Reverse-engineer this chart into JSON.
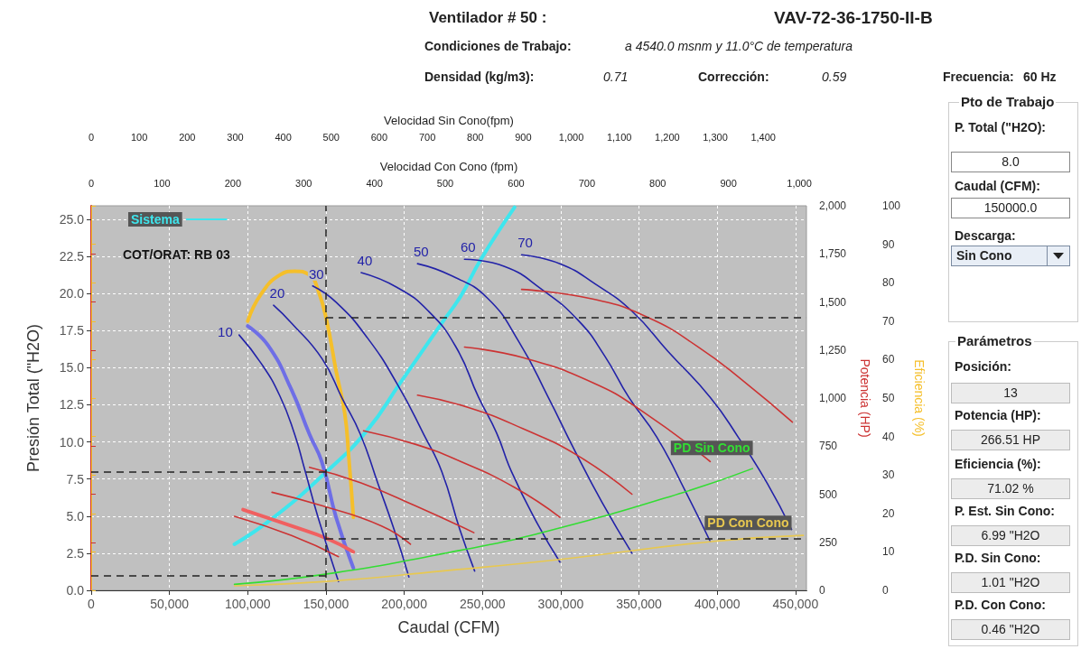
{
  "chart_data": {
    "type": "line",
    "title": "Ventilador # 50 :",
    "subtitle": "VAV-72-36-1750-II-B",
    "xlabel": "Caudal (CFM)",
    "ylabel": "Presión Total (\"H2O)",
    "y2label": "Potencia (HP)",
    "y3label": "Eficiencia (%)",
    "x2label": "Velocidad Sin Cono(fpm)",
    "xlim": [
      0,
      457000
    ],
    "xticks": [
      0,
      {
        "value": 50000,
        "label": "50,000"
      },
      {
        "value": 100000,
        "label": "100,000"
      },
      {
        "value": 150000,
        "label": "150,000"
      },
      {
        "value": 200000,
        "label": "200,000"
      },
      {
        "value": 250000,
        "label": "250,000"
      },
      {
        "value": 300000,
        "label": "300,000"
      },
      {
        "value": 350000,
        "label": "350,000"
      },
      {
        "value": 400000,
        "label": "400,000"
      },
      {
        "value": 450000,
        "label": "450,000"
      }
    ],
    "x2lim": [
      0,
      1490
    ],
    "x2ticks": [
      0,
      100,
      200,
      300,
      400,
      500,
      600,
      700,
      800,
      900,
      {
        "value": 1000,
        "label": "1,000"
      },
      {
        "value": 1100,
        "label": "1,100"
      },
      {
        "value": 1200,
        "label": "1,200"
      },
      {
        "value": 1300,
        "label": "1,300"
      },
      {
        "value": 1400,
        "label": "1,400"
      }
    ],
    "ylim": [
      0,
      25.9
    ],
    "yticks": [
      {
        "value": 0,
        "label": "0.0"
      },
      2.5,
      {
        "value": 5,
        "label": "5.0"
      },
      7.5,
      {
        "value": 10,
        "label": "10.0"
      },
      12.5,
      {
        "value": 15,
        "label": "15.0"
      },
      17.5,
      {
        "value": 20,
        "label": "20.0"
      },
      22.5,
      {
        "value": 25,
        "label": "25.0"
      }
    ],
    "y2lim": [
      0,
      2000
    ],
    "y2ticks": [
      0,
      250,
      500,
      750,
      {
        "value": 1000,
        "label": "1,000"
      },
      {
        "value": 1250,
        "label": "1,250"
      },
      {
        "value": 1500,
        "label": "1,500"
      },
      {
        "value": 1750,
        "label": "1,750"
      },
      {
        "value": 2000,
        "label": "2,000"
      }
    ],
    "y3lim": [
      0,
      100
    ],
    "y3ticks": [
      0,
      10,
      20,
      30,
      40,
      50,
      60,
      70,
      80,
      90,
      100
    ],
    "grid": true,
    "legend": "top left",
    "marker": "none",
    "line_style": "solid",
    "series": [
      {
        "name": "Sistema",
        "color": "#3ee6ee",
        "x": [
          91500,
          116500,
          150500,
          176500,
          197000,
          224000,
          236000,
          249000,
          270500
        ],
        "values": [
          3.1,
          4.9,
          8.0,
          10.8,
          13.9,
          18.0,
          19.8,
          22.3,
          25.8
        ]
      },
      {
        "name": "10",
        "color": "#2222a8",
        "x": [
          94500,
          108500,
          120500,
          130000,
          136000,
          145000,
          158000
        ],
        "values": [
          17.2,
          15.3,
          13.1,
          10.5,
          8.3,
          4.9,
          0.6
        ]
      },
      {
        "name": "20",
        "color": "#2222a8",
        "x": [
          116500,
          128000,
          147500,
          160500,
          172000,
          183500,
          193500,
          203000
        ],
        "values": [
          19.2,
          18.0,
          15.6,
          12.9,
          10.5,
          7.1,
          4.1,
          0.9
        ]
      },
      {
        "name": "30",
        "color": "#2222a8",
        "x": [
          141500,
          156500,
          176500,
          195500,
          212500,
          224000,
          235500,
          245000
        ],
        "values": [
          20.5,
          19.4,
          17.0,
          13.9,
          10.5,
          8.0,
          4.1,
          1.3
        ]
      },
      {
        "name": "40",
        "color": "#2222a8",
        "x": [
          172500,
          195500,
          215500,
          233000,
          247500,
          259000,
          268500,
          285000,
          299500
        ],
        "values": [
          21.4,
          20.4,
          18.8,
          16.4,
          13.0,
          10.6,
          8.0,
          4.5,
          1.9
        ]
      },
      {
        "name": "50",
        "color": "#2222a8",
        "x": [
          208500,
          230000,
          253000,
          273500,
          292000,
          309000,
          326500,
          345500
        ],
        "values": [
          22.0,
          21.2,
          19.7,
          16.7,
          13.0,
          9.4,
          5.9,
          2.5
        ]
      },
      {
        "name": "60",
        "color": "#2222a8",
        "x": [
          238500,
          264500,
          287500,
          311000,
          328000,
          343500,
          361500,
          380000,
          395500
        ],
        "values": [
          22.3,
          21.8,
          20.3,
          18.2,
          15.8,
          13.0,
          10.3,
          6.6,
          3.3
        ]
      },
      {
        "name": "70",
        "color": "#2222a8",
        "x": [
          275000,
          299500,
          322500,
          345500,
          368500,
          395500,
          413500,
          432000,
          447500
        ],
        "values": [
          22.6,
          22.0,
          20.6,
          18.8,
          16.1,
          13.0,
          10.3,
          7.2,
          4.1
        ]
      },
      {
        "color": "#6e6ee6",
        "x": [
          100000,
          113000,
          128000,
          139500,
          147500,
          156500,
          167500
        ],
        "values": [
          17.8,
          16.5,
          13.5,
          10.5,
          8.6,
          4.9,
          1.5
        ]
      },
      {
        "name": "PD Sin Cono",
        "color": "#33dd33",
        "x": [
          91500,
          150500,
          236000,
          292000,
          378500,
          422500
        ],
        "values": [
          0.4,
          1.1,
          2.7,
          4.0,
          6.6,
          8.2
        ]
      },
      {
        "name": "PD Con Cono",
        "color": "#e8c850",
        "x": [
          91500,
          150500,
          224000,
          301000,
          397500,
          455000
        ],
        "values": [
          0.3,
          0.6,
          1.3,
          2.1,
          3.3,
          3.7
        ]
      },
      {
        "axis": "y2",
        "color": "#cc3333",
        "x": [
          91500,
          128000,
          158000
        ],
        "values": [
          385,
          285,
          175
        ]
      },
      {
        "axis": "y2",
        "color": "#cc3333",
        "x": [
          115500,
          147500,
          185500,
          204000
        ],
        "values": [
          510,
          440,
          335,
          240
        ]
      },
      {
        "axis": "y2",
        "color": "#cc3333",
        "x": [
          139500,
          172000,
          207000,
          244500
        ],
        "values": [
          640,
          560,
          440,
          300
        ]
      },
      {
        "axis": "y2",
        "color": "#cc3333",
        "x": [
          174000,
          207000,
          236000,
          270500,
          299500
        ],
        "values": [
          830,
          760,
          670,
          535,
          380
        ]
      },
      {
        "axis": "y2",
        "color": "#cc3333",
        "x": [
          208500,
          241500,
          276000,
          311000,
          345500
        ],
        "values": [
          1015,
          950,
          840,
          700,
          500
        ]
      },
      {
        "axis": "y2",
        "color": "#cc3333",
        "x": [
          238500,
          276000,
          320500,
          351500,
          395500
        ],
        "values": [
          1265,
          1210,
          1080,
          935,
          670
        ]
      },
      {
        "axis": "y2",
        "color": "#cc3333",
        "x": [
          275000,
          320500,
          355500,
          388000,
          416500,
          448000
        ],
        "values": [
          1565,
          1515,
          1420,
          1265,
          1090,
          875
        ]
      },
      {
        "axis": "y2",
        "color": "#f06060",
        "x": [
          97000,
          128000,
          150500,
          167500
        ],
        "values": [
          420,
          335,
          270,
          200
        ]
      },
      {
        "axis": "y3",
        "color": "#f5bf2a",
        "x": [
          100000,
          108500,
          120500,
          130000,
          139500,
          145000,
          150500,
          156500,
          162000,
          164500,
          167500
        ],
        "values": [
          70,
          77,
          82,
          83,
          82,
          78,
          70,
          57,
          46,
          35,
          19
        ]
      }
    ],
    "ref_lines": [
      {
        "axis": "x",
        "value": 150000,
        "color": "#222222",
        "line_style": "dashed"
      },
      {
        "axis": "y",
        "value": 8.0,
        "color": "#222222",
        "line_style": "dashed"
      },
      {
        "axis": "y",
        "value": 1.01,
        "color": "#222222",
        "line_style": "dashed"
      },
      {
        "axis": "y2",
        "value": 266.51,
        "color": "#222222",
        "line_style": "dashed"
      },
      {
        "axis": "y3",
        "value": 71.02,
        "color": "#222222",
        "line_style": "dashed"
      }
    ],
    "annotations": [
      "Condiciones de Trabajo:",
      "a 4540.0 msnm y 11.0°C de temperatura",
      "Densidad (kg/m3):",
      "0.71",
      "Corrección:",
      "0.59",
      "Frecuencia:",
      "60 Hz",
      "COT/ORAT: RB 03",
      "Pto de Trabajo",
      "P. Total (\"H2O):",
      "8.0",
      "Caudal (CFM):",
      "150000.0",
      "Descarga:",
      "Sin Cono",
      "Parámetros",
      "Posición:",
      "13",
      "Potencia (HP):",
      "266.51 HP",
      "Eficiencia (%):",
      "71.02 %",
      "P. Est. Sin Cono:",
      "6.99 \"H2O",
      "P.D. Sin Cono:",
      "1.01 \"H2O",
      "P.D. Con Cono:",
      "0.46 \"H2O",
      "Velocidad Con Cono (fpm)",
      "0",
      "100",
      "200",
      "300",
      "400",
      "500",
      "600",
      "700",
      "800",
      "900",
      "1,000"
    ]
  }
}
